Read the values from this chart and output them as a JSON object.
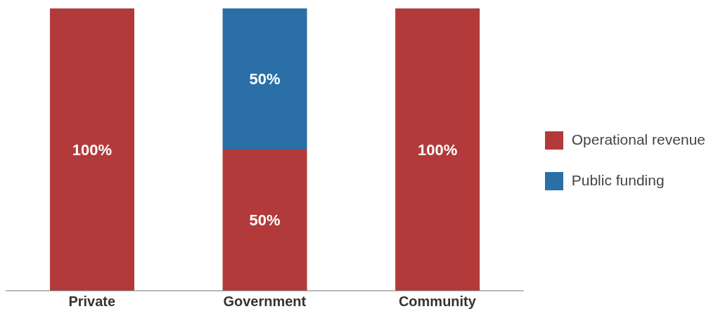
{
  "chart_data": {
    "type": "bar",
    "stacked": true,
    "categories": [
      "Private",
      "Government",
      "Community"
    ],
    "series": [
      {
        "name": "Operational revenue",
        "color": "#b33a3a",
        "values": [
          100,
          50,
          100
        ],
        "value_labels": [
          "100%",
          "50%",
          "100%"
        ]
      },
      {
        "name": "Public funding",
        "color": "#2a6fa8",
        "values": [
          0,
          50,
          0
        ],
        "value_labels": [
          null,
          "50%",
          null
        ]
      }
    ],
    "legend": "right",
    "grid": false
  }
}
